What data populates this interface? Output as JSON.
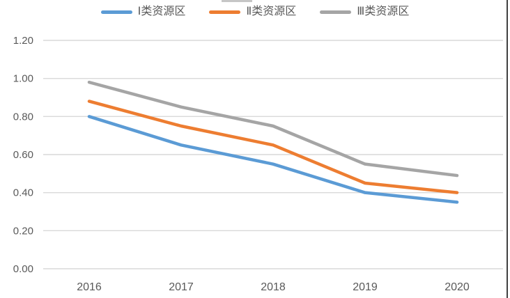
{
  "chart_data": {
    "type": "line",
    "title": "",
    "categories": [
      "2016",
      "2017",
      "2018",
      "2019",
      "2020"
    ],
    "series": [
      {
        "name": "Ⅰ类资源区",
        "color": "#5B9BD5",
        "values": [
          0.8,
          0.65,
          0.55,
          0.4,
          0.35
        ]
      },
      {
        "name": "Ⅱ类资源区",
        "color": "#ED7D31",
        "values": [
          0.88,
          0.75,
          0.65,
          0.45,
          0.4
        ]
      },
      {
        "name": "Ⅲ类资源区",
        "color": "#A5A5A5",
        "values": [
          0.98,
          0.85,
          0.75,
          0.55,
          0.49
        ]
      }
    ],
    "xlabel": "",
    "ylabel": "",
    "ylim": [
      0.0,
      1.2
    ],
    "ytick_step": 0.2,
    "ytick_labels": [
      "0.00",
      "0.20",
      "0.40",
      "0.60",
      "0.80",
      "1.00",
      "1.20"
    ],
    "grid": true,
    "legend_position": "top"
  },
  "colors": {
    "gridline": "#D9D9D9",
    "axis_text": "#595959",
    "legend_text": "#595959",
    "background": "#FFFFFF",
    "right_edge_line": "#404040",
    "top_artifact": "#C6C6C6"
  }
}
